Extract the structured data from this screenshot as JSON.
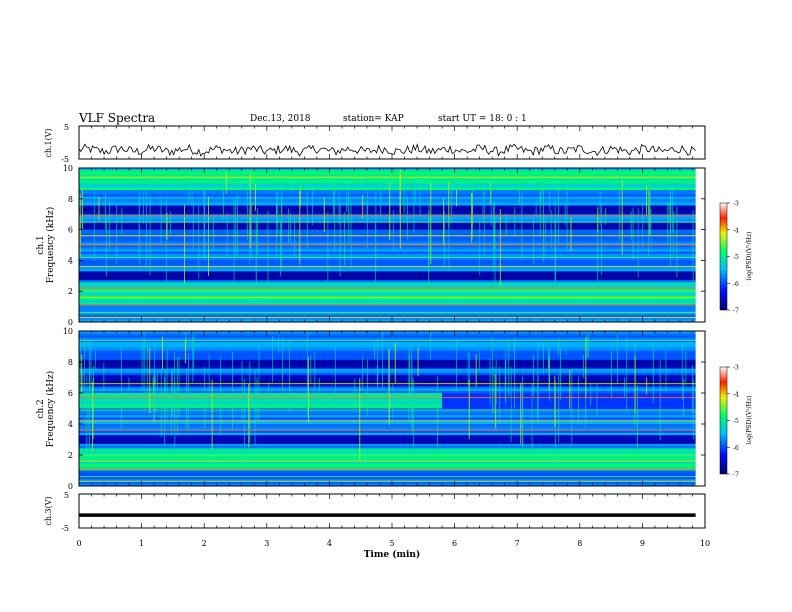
{
  "header": {
    "title": "VLF Spectra",
    "date": "Dec.13, 2018",
    "station": "station= KAP",
    "start": "start  UT  =   18: 0  : 1"
  },
  "chart_data": [
    {
      "type": "line",
      "name": "ch1-waveform",
      "ylabel": "ch.1(V)",
      "ylim": [
        -5,
        5
      ],
      "yticks": [
        "5",
        "-5"
      ],
      "xlim": [
        0,
        10
      ],
      "samples": 320,
      "mean": -2.3,
      "amplitude": 1.4
    },
    {
      "type": "heatmap",
      "name": "ch1-spectrogram",
      "ylabel": "ch.1 Frequency (kHz)",
      "ylabel_top": "ch.1",
      "ylabel_bottom": "Frequency  (kHz)",
      "ylim": [
        0,
        10
      ],
      "yticks": [
        "0",
        "2",
        "4",
        "6",
        "8",
        "10"
      ],
      "xlim": [
        0,
        10
      ],
      "colorbar": {
        "label": "log(PSD)(V²/Hz)",
        "range": [
          -7,
          -3
        ],
        "ticks": [
          "-3",
          "-4",
          "-5",
          "-6",
          "-7"
        ]
      },
      "spectral_lines_khz": [
        0.3,
        0.6,
        1.1,
        1.6,
        2.0,
        2.2,
        3.6,
        4.2,
        5.0,
        5.6,
        6.5,
        6.9,
        9.4
      ],
      "dark_bands_khz": [
        [
          2.7,
          3.3
        ],
        [
          6.0,
          6.4
        ],
        [
          7.0,
          7.6
        ]
      ],
      "bright_bands_khz": [
        [
          1.2,
          2.6
        ],
        [
          8.6,
          9.9
        ]
      ]
    },
    {
      "type": "heatmap",
      "name": "ch2-spectrogram",
      "ylabel": "ch.2 Frequency (kHz)",
      "ylabel_top": "ch.2",
      "ylabel_bottom": "Frequency  (kHz)",
      "ylim": [
        0,
        10
      ],
      "yticks": [
        "0",
        "2",
        "4",
        "6",
        "8",
        "10"
      ],
      "xlim": [
        0,
        10
      ],
      "colorbar": {
        "label": "log(PSD)(V²/Hz)",
        "range": [
          -7,
          -3
        ],
        "ticks": [
          "-3",
          "-4",
          "-5",
          "-6",
          "-7"
        ]
      },
      "spectral_lines_khz": [
        0.3,
        0.6,
        1.1,
        1.6,
        2.0,
        3.6,
        4.2,
        4.9,
        5.7,
        6.6,
        9.4
      ],
      "dark_bands_khz": [
        [
          2.7,
          3.3
        ],
        [
          6.5,
          7.2
        ],
        [
          7.6,
          8.2
        ]
      ],
      "bright_bands_khz": [
        [
          1.0,
          2.4
        ],
        [
          5.0,
          6.0
        ]
      ],
      "bright_band_end_min": 5.8
    },
    {
      "type": "line",
      "name": "ch3-waveform",
      "ylabel": "ch.3(V)",
      "ylim": [
        -5,
        5
      ],
      "yticks": [
        "5",
        "-5"
      ],
      "xlim": [
        0,
        10
      ],
      "value": -1.2,
      "xlabel": "Time  (min)",
      "xticks": [
        "0",
        "1",
        "2",
        "3",
        "4",
        "5",
        "6",
        "7",
        "8",
        "9",
        "10"
      ]
    }
  ]
}
